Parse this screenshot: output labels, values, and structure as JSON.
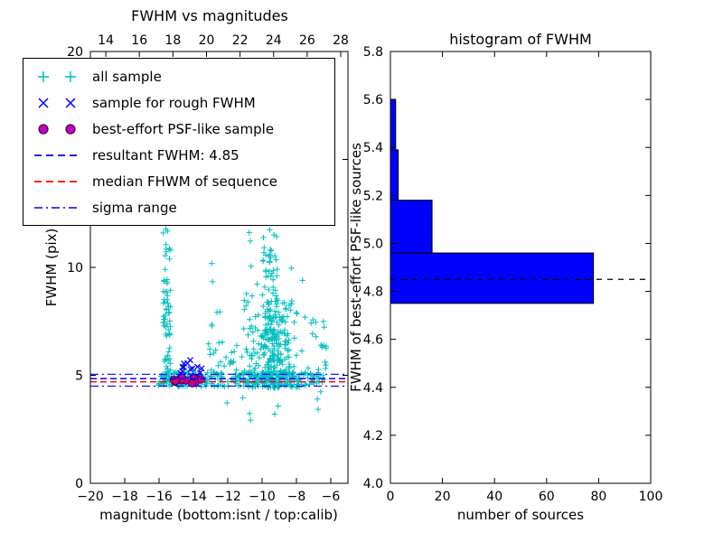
{
  "figure": {
    "background": "#ffffff"
  },
  "chart_data": [
    {
      "type": "scatter",
      "title": "FWHM vs magnitudes",
      "xlabel": "magnitude (bottom:isnt / top:calib)",
      "ylabel": "FWHM (pix)",
      "xlim": [
        -20,
        -5
      ],
      "ylim": [
        0,
        20
      ],
      "top_xlim": [
        13.08,
        28.43
      ],
      "grid": false,
      "x_ticks": [
        {
          "v": -20,
          "label": "−20"
        },
        {
          "v": -18,
          "label": "−18"
        },
        {
          "v": -16,
          "label": "−16"
        },
        {
          "v": -14,
          "label": "−14"
        },
        {
          "v": -12,
          "label": "−12"
        },
        {
          "v": -10,
          "label": "−10"
        },
        {
          "v": -8,
          "label": "−8"
        },
        {
          "v": -6,
          "label": "−6"
        }
      ],
      "top_ticks": [
        {
          "v": 14,
          "label": "14"
        },
        {
          "v": 16,
          "label": "16"
        },
        {
          "v": 18,
          "label": "18"
        },
        {
          "v": 20,
          "label": "20"
        },
        {
          "v": 22,
          "label": "22"
        },
        {
          "v": 24,
          "label": "24"
        },
        {
          "v": 26,
          "label": "26"
        },
        {
          "v": 28,
          "label": "28"
        }
      ],
      "y_ticks": [
        {
          "v": 0,
          "label": "0"
        },
        {
          "v": 5,
          "label": "5"
        },
        {
          "v": 10,
          "label": "10"
        },
        {
          "v": 15,
          "label": "15"
        },
        {
          "v": 20,
          "label": "20"
        }
      ],
      "series": [
        {
          "name": "all sample",
          "marker": "plus",
          "color": "#00bfbf",
          "clusters": [
            {
              "shape": "uniform",
              "x": [
                -16.1,
                -6.3
              ],
              "y": [
                4.45,
                5.15
              ],
              "n": 210
            },
            {
              "shape": "uniform",
              "x": [
                -15.9,
                -13.2
              ],
              "y": [
                4.5,
                5.05
              ],
              "n": 55
            },
            {
              "shape": "uniform",
              "x": [
                -11.6,
                -7.8
              ],
              "y": [
                4.4,
                5.2
              ],
              "n": 75
            },
            {
              "shape": "uniform",
              "x": [
                -15.75,
                -15.33
              ],
              "y": [
                4.9,
                9.6
              ],
              "n": 55
            },
            {
              "shape": "uniform",
              "x": [
                -15.8,
                -15.3
              ],
              "y": [
                9.6,
                12.8
              ],
              "n": 13
            },
            {
              "shape": "gauss",
              "cx": -9.4,
              "cy": 6.1,
              "sx": 0.75,
              "sy": 1.7,
              "clip_x": [
                -11.2,
                -6.9
              ],
              "clip_y": [
                4.4,
                12.6
              ],
              "n": 250
            },
            {
              "shape": "uniform",
              "x": [
                -9.95,
                -9.3
              ],
              "y": [
                4.6,
                11.0
              ],
              "n": 60
            },
            {
              "shape": "uniform",
              "x": [
                -10.9,
                -9.0
              ],
              "y": [
                11.0,
                12.9
              ],
              "n": 11
            },
            {
              "shape": "uniform",
              "x": [
                -13.3,
                -11.4
              ],
              "y": [
                4.9,
                6.6
              ],
              "n": 22
            },
            {
              "shape": "uniform",
              "x": [
                -12.95,
                -12.45
              ],
              "y": [
                6.0,
                10.3
              ],
              "n": 8
            },
            {
              "shape": "uniform",
              "x": [
                -7.2,
                -6.25
              ],
              "y": [
                4.8,
                7.6
              ],
              "n": 16
            },
            {
              "shape": "uniform",
              "x": [
                -12.8,
                -6.5
              ],
              "y": [
                2.8,
                4.25
              ],
              "n": 9
            }
          ]
        },
        {
          "name": "sample for rough FWHM",
          "marker": "x",
          "color": "#0000ff",
          "clusters": [
            {
              "shape": "uniform",
              "x": [
                -14.9,
                -13.5
              ],
              "y": [
                4.85,
                5.45
              ],
              "n": 12
            },
            {
              "shape": "uniform",
              "x": [
                -14.6,
                -14.05
              ],
              "y": [
                5.45,
                5.72
              ],
              "n": 3
            }
          ]
        },
        {
          "name": "best-effort PSF-like sample",
          "marker": "circle",
          "color": "#bf00bf",
          "edge_color": "#4b004b",
          "clusters": [
            {
              "shape": "uniform",
              "x": [
                -15.15,
                -13.55
              ],
              "y": [
                4.62,
                4.95
              ],
              "n": 13
            }
          ]
        }
      ],
      "hlines": [
        {
          "name": "resultant FWHM",
          "y": 4.85,
          "color": "#0000ff",
          "dash": "7 4",
          "width": 1.5
        },
        {
          "name": "median FHWM of sequence",
          "y": 4.7,
          "color": "#ff0000",
          "dash": "7 4",
          "width": 1.5
        },
        {
          "name": "sigma range upper",
          "y": 5.05,
          "color": "#0000ff",
          "dash": "9 4 2 4",
          "width": 1.2
        },
        {
          "name": "sigma range lower",
          "y": 4.5,
          "color": "#0000ff",
          "dash": "9 4 2 4",
          "width": 1.2
        }
      ],
      "legend": {
        "items": [
          {
            "label": "all sample",
            "marker": "plus",
            "color": "#00bfbf"
          },
          {
            "label": "sample for rough FWHM",
            "marker": "x",
            "color": "#0000ff"
          },
          {
            "label": "best-effort PSF-like sample",
            "marker": "circle",
            "color": "#bf00bf"
          },
          {
            "label": "resultant FWHM: 4.85",
            "marker": "dashed",
            "color": "#0000ff"
          },
          {
            "label": "median FHWM of sequence",
            "marker": "dashed",
            "color": "#ff0000"
          },
          {
            "label": "sigma range",
            "marker": "dashdot",
            "color": "#0000ff"
          }
        ]
      }
    },
    {
      "type": "bar",
      "orientation": "horizontal",
      "title": "histogram of FWHM",
      "xlabel": "number of sources",
      "ylabel": "FWHM of best-effort PSF-like sources",
      "xlim": [
        0,
        100
      ],
      "ylim": [
        4.0,
        5.8
      ],
      "x_ticks": [
        {
          "v": 0,
          "label": "0"
        },
        {
          "v": 20,
          "label": "20"
        },
        {
          "v": 40,
          "label": "40"
        },
        {
          "v": 60,
          "label": "60"
        },
        {
          "v": 80,
          "label": "80"
        },
        {
          "v": 100,
          "label": "100"
        }
      ],
      "y_ticks": [
        {
          "v": 4.0,
          "label": "4.0"
        },
        {
          "v": 4.2,
          "label": "4.2"
        },
        {
          "v": 4.4,
          "label": "4.4"
        },
        {
          "v": 4.6,
          "label": "4.6"
        },
        {
          "v": 4.8,
          "label": "4.8"
        },
        {
          "v": 5.0,
          "label": "5.0"
        },
        {
          "v": 5.2,
          "label": "5.2"
        },
        {
          "v": 5.4,
          "label": "5.4"
        },
        {
          "v": 5.6,
          "label": "5.6"
        },
        {
          "v": 5.8,
          "label": "5.8"
        }
      ],
      "bin_edges": [
        4.75,
        4.96,
        5.18,
        5.39,
        5.6
      ],
      "counts": [
        78,
        16,
        3,
        2
      ],
      "bar_color": "#0000ff",
      "bar_edge_color": "#000000",
      "median_line": {
        "y": 4.85,
        "color": "#000000",
        "dash": "6 6"
      }
    }
  ]
}
